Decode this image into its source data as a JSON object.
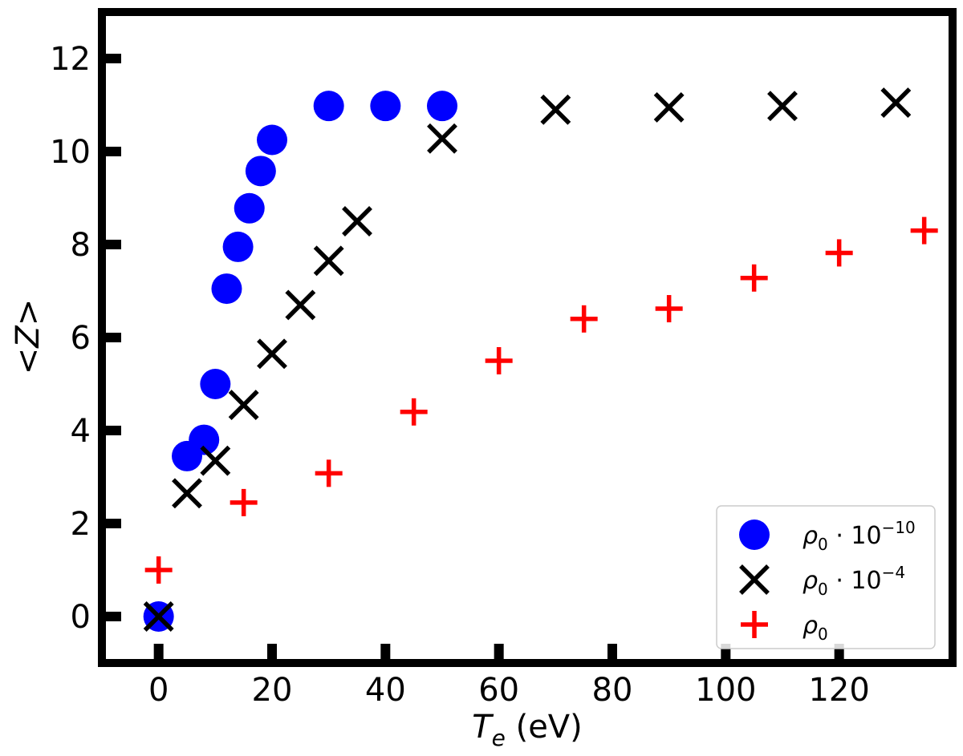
{
  "chart_data": {
    "type": "scatter",
    "title": "",
    "xlabel": "T_e (eV)",
    "ylabel": "<Z>",
    "xlim": [
      -10,
      140
    ],
    "ylim": [
      -1,
      13
    ],
    "xticks": [
      0,
      20,
      40,
      60,
      80,
      100,
      120
    ],
    "yticks": [
      0,
      2,
      4,
      6,
      8,
      10,
      12
    ],
    "grid": false,
    "legend_position": "bottom-right",
    "series": [
      {
        "name": "ρ0·10^-10",
        "legend_label": {
          "base": "ρ",
          "sub": "0",
          "mid": " · 10",
          "sup": "−10"
        },
        "marker": "circle",
        "color": "#0000ff",
        "x": [
          0,
          5,
          8,
          10,
          12,
          14,
          16,
          18,
          20,
          30,
          40,
          50
        ],
        "y": [
          0,
          3.45,
          3.8,
          5.0,
          7.05,
          7.95,
          8.78,
          9.58,
          10.25,
          10.98,
          10.98,
          10.98
        ]
      },
      {
        "name": "ρ0·10^-4",
        "legend_label": {
          "base": "ρ",
          "sub": "0",
          "mid": " · 10",
          "sup": "−4"
        },
        "marker": "x",
        "color": "#000000",
        "x": [
          0,
          5,
          10,
          15,
          20,
          25,
          30,
          35,
          50,
          70,
          90,
          110,
          130
        ],
        "y": [
          0,
          2.65,
          3.35,
          4.55,
          5.65,
          6.7,
          7.65,
          8.5,
          10.28,
          10.9,
          10.95,
          10.98,
          11.05
        ]
      },
      {
        "name": "ρ0",
        "legend_label": {
          "base": "ρ",
          "sub": "0",
          "mid": "",
          "sup": ""
        },
        "marker": "plus",
        "color": "#ff0000",
        "x": [
          0,
          15,
          30,
          45,
          60,
          75,
          90,
          105,
          120,
          135
        ],
        "y": [
          1.0,
          2.45,
          3.08,
          4.4,
          5.5,
          6.4,
          6.62,
          7.28,
          7.82,
          8.3
        ]
      }
    ]
  }
}
